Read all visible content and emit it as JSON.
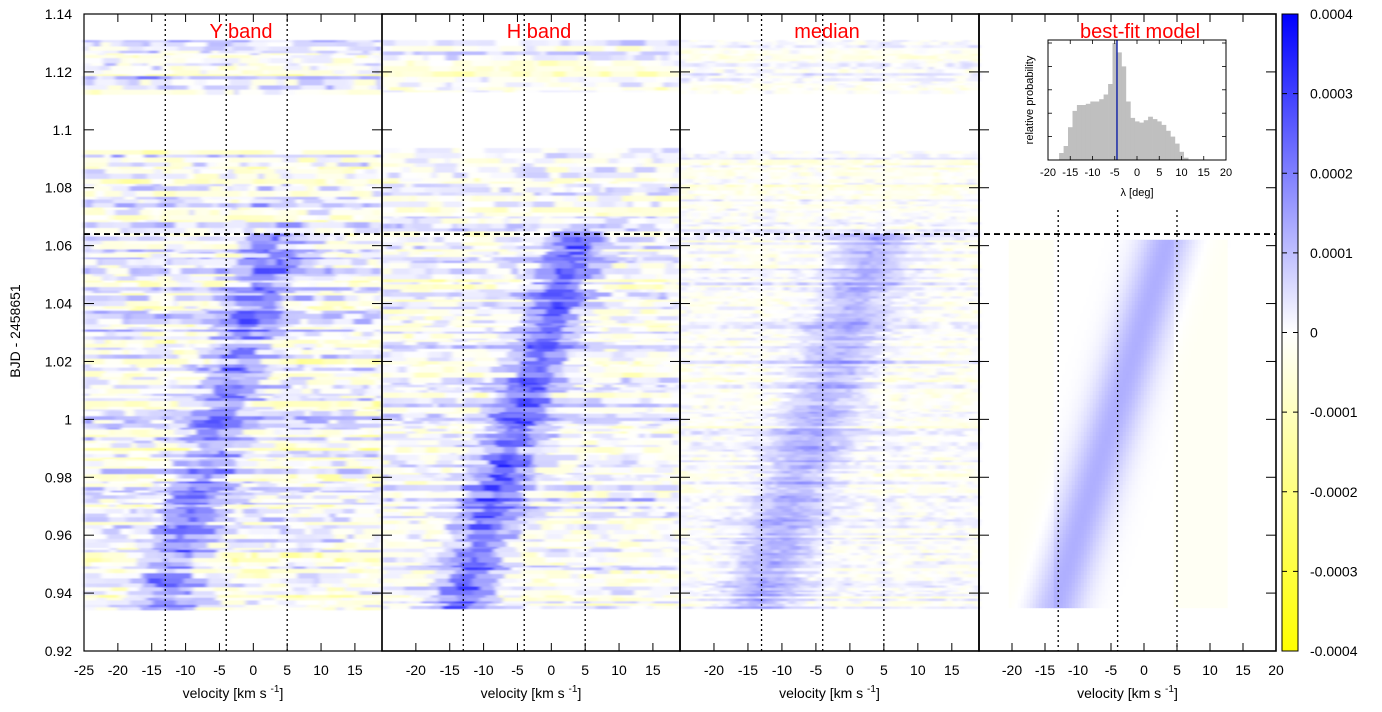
{
  "chart_data": {
    "type": "heatmap",
    "ylabel": "BJD - 2458651",
    "ylim": [
      0.92,
      1.14
    ],
    "y_ticks": [
      "0.92",
      "0.94",
      "0.96",
      "0.98",
      "1",
      "1.02",
      "1.04",
      "1.06",
      "1.08",
      "1.1",
      "1.12",
      "1.14"
    ],
    "y_tick_values": [
      0.92,
      0.94,
      0.96,
      0.98,
      1.0,
      1.02,
      1.04,
      1.06,
      1.08,
      1.1,
      1.12,
      1.14
    ],
    "xlabel_main": "velocity [km s",
    "xlabel_sup": "-1",
    "xlabel_close": "]",
    "transit_end_bjd": 1.064,
    "egress_band_bjd": [
      1.093,
      1.113
    ],
    "observation_range_bjd": [
      0.935,
      1.131
    ],
    "vsini_line_velocities": [
      -13,
      -4,
      5
    ],
    "panels": [
      {
        "title": "Y band",
        "xlim": [
          -25,
          19
        ],
        "x_tick_labels": [
          "-25",
          "-20",
          "-15",
          "-10",
          "-5",
          "0",
          "5",
          "10",
          "15"
        ],
        "x_tick_values": [
          -25,
          -20,
          -15,
          -10,
          -5,
          0,
          5,
          10,
          15
        ]
      },
      {
        "title": "H band",
        "xlim": [
          -25,
          19
        ],
        "x_tick_labels": [
          "-20",
          "-15",
          "-10",
          "-5",
          "0",
          "5",
          "10",
          "15"
        ],
        "x_tick_values": [
          -20,
          -15,
          -10,
          -5,
          0,
          5,
          10,
          15
        ]
      },
      {
        "title": "median",
        "xlim": [
          -25,
          19
        ],
        "x_tick_labels": [
          "-20",
          "-15",
          "-10",
          "-5",
          "0",
          "5",
          "10",
          "15"
        ],
        "x_tick_values": [
          -20,
          -15,
          -10,
          -5,
          0,
          5,
          10,
          15
        ]
      },
      {
        "title": "best-fit model",
        "xlim": [
          -25,
          20
        ],
        "x_tick_labels": [
          "-20",
          "-15",
          "-10",
          "-5",
          "0",
          "5",
          "10",
          "15",
          "20"
        ],
        "x_tick_values": [
          -20,
          -15,
          -10,
          -5,
          0,
          5,
          10,
          15,
          20
        ]
      }
    ],
    "colorbar": {
      "range": [
        -0.0004,
        0.0004
      ],
      "tick_labels": [
        "0.0004",
        "0.0003",
        "0.0002",
        "0.0001",
        "0",
        "-0.0001",
        "-0.0002",
        "-0.0003",
        "-0.0004"
      ],
      "tick_values": [
        0.0004,
        0.0003,
        0.0002,
        0.0001,
        0,
        -0.0001,
        -0.0002,
        -0.0003,
        -0.0004
      ],
      "color_high": "#0000ff",
      "color_zero": "#ffffff",
      "color_low": "#ffff00"
    },
    "inset": {
      "type": "histogram",
      "xlabel": "λ [deg]",
      "ylabel": "relative probability",
      "xlim": [
        -20,
        20
      ],
      "x_tick_labels": [
        "-20",
        "-15",
        "-10",
        "-5",
        "0",
        "5",
        "10",
        "15",
        "20"
      ],
      "x_tick_values": [
        -20,
        -15,
        -10,
        -5,
        0,
        5,
        10,
        15,
        20
      ],
      "best_fit": -4.5,
      "bin_width": 1,
      "bins": [
        {
          "x": -17,
          "p": 0.06
        },
        {
          "x": -16,
          "p": 0.12
        },
        {
          "x": -15,
          "p": 0.28
        },
        {
          "x": -14,
          "p": 0.42
        },
        {
          "x": -13,
          "p": 0.47
        },
        {
          "x": -12,
          "p": 0.47
        },
        {
          "x": -11,
          "p": 0.48
        },
        {
          "x": -10,
          "p": 0.5
        },
        {
          "x": -9,
          "p": 0.5
        },
        {
          "x": -8,
          "p": 0.52
        },
        {
          "x": -7,
          "p": 0.56
        },
        {
          "x": -6,
          "p": 0.65
        },
        {
          "x": -5,
          "p": 1.0
        },
        {
          "x": -4,
          "p": 0.92
        },
        {
          "x": -3,
          "p": 0.8
        },
        {
          "x": -2,
          "p": 0.5
        },
        {
          "x": -1,
          "p": 0.36
        },
        {
          "x": 0,
          "p": 0.33
        },
        {
          "x": 1,
          "p": 0.32
        },
        {
          "x": 2,
          "p": 0.34
        },
        {
          "x": 3,
          "p": 0.37
        },
        {
          "x": 4,
          "p": 0.35
        },
        {
          "x": 5,
          "p": 0.33
        },
        {
          "x": 6,
          "p": 0.3
        },
        {
          "x": 7,
          "p": 0.25
        },
        {
          "x": 8,
          "p": 0.2
        },
        {
          "x": 9,
          "p": 0.14
        },
        {
          "x": 10,
          "p": 0.07
        },
        {
          "x": 11,
          "p": 0.02
        }
      ]
    }
  }
}
